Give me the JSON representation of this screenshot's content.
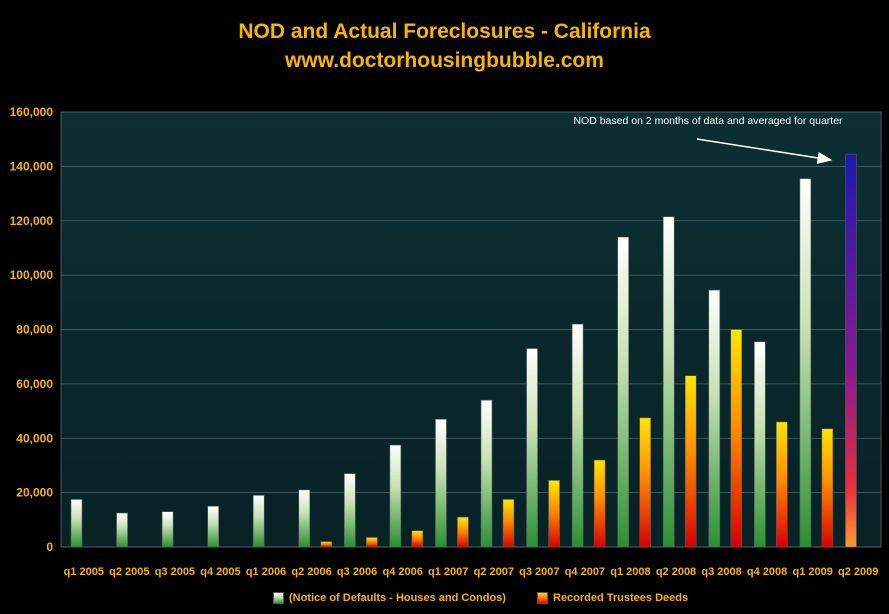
{
  "title": "NOD and Actual Foreclosures - California",
  "subtitle": "www.doctorhousingbubble.com",
  "annotation": "NOD based on 2 months of data and averaged for quarter",
  "legend": {
    "nod": "(Notice of Defaults - Houses and Condos)",
    "td": "Recorded Trustees Deeds"
  },
  "colors": {
    "title": "#f7b500",
    "plot_background": "#0b2a2e",
    "nod_bar": "#7dbb5e",
    "trustee_bar": "#ff6a00",
    "highlight_bar": "#2a1fa8"
  },
  "chart_data": {
    "type": "bar",
    "categories": [
      "q1 2005",
      "q2 2005",
      "q3 2005",
      "q4 2005",
      "q1 2006",
      "q2 2006",
      "q3 2006",
      "q4 2006",
      "q1 2007",
      "q2 2007",
      "q3 2007",
      "q4 2007",
      "q1 2008",
      "q2 2008",
      "q3 2008",
      "q4 2008",
      "q1 2009",
      "q2 2009"
    ],
    "series": [
      {
        "name": "(Notice of Defaults - Houses and Condos)",
        "values": [
          17500,
          12500,
          13000,
          15000,
          19000,
          21000,
          27000,
          37500,
          47000,
          54000,
          73000,
          82000,
          114000,
          121500,
          94500,
          75500,
          135500,
          144500
        ]
      },
      {
        "name": "Recorded Trustees Deeds",
        "values": [
          0,
          0,
          0,
          0,
          0,
          2000,
          3500,
          6000,
          11000,
          17500,
          24500,
          32000,
          47500,
          63000,
          80000,
          46000,
          43500,
          0
        ]
      }
    ],
    "highlight": {
      "category": "q2 2009",
      "series": 0
    },
    "yticks": [
      "0",
      "20,000",
      "40,000",
      "60,000",
      "80,000",
      "100,000",
      "120,000",
      "140,000",
      "160,000"
    ],
    "ylim": [
      0,
      160000
    ],
    "grid": true,
    "legend_position": "bottom"
  }
}
